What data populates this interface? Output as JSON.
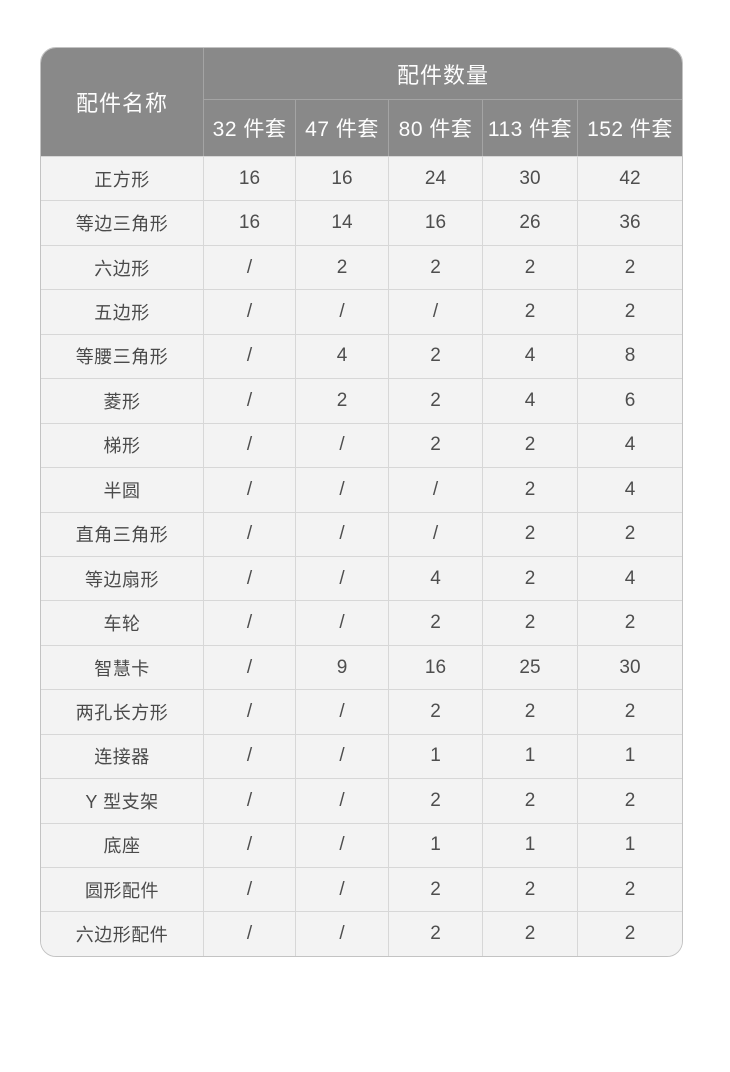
{
  "page": {
    "background": "#ffffff"
  },
  "chart_data": {
    "type": "table",
    "title": "配件数量",
    "row_header_label": "配件名称",
    "column_group_label": "配件数量",
    "columns": [
      "32 件套",
      "47 件套",
      "80 件套",
      "113 件套",
      "152 件套"
    ],
    "missing_marker": "/",
    "rows": [
      {
        "name": "正方形",
        "values": [
          "16",
          "16",
          "24",
          "30",
          "42"
        ]
      },
      {
        "name": "等边三角形",
        "values": [
          "16",
          "14",
          "16",
          "26",
          "36"
        ]
      },
      {
        "name": "六边形",
        "values": [
          "/",
          "2",
          "2",
          "2",
          "2"
        ]
      },
      {
        "name": "五边形",
        "values": [
          "/",
          "/",
          "/",
          "2",
          "2"
        ]
      },
      {
        "name": "等腰三角形",
        "values": [
          "/",
          "4",
          "2",
          "4",
          "8"
        ]
      },
      {
        "name": "菱形",
        "values": [
          "/",
          "2",
          "2",
          "4",
          "6"
        ]
      },
      {
        "name": "梯形",
        "values": [
          "/",
          "/",
          "2",
          "2",
          "4"
        ]
      },
      {
        "name": "半圆",
        "values": [
          "/",
          "/",
          "/",
          "2",
          "4"
        ]
      },
      {
        "name": "直角三角形",
        "values": [
          "/",
          "/",
          "/",
          "2",
          "2"
        ]
      },
      {
        "name": "等边扇形",
        "values": [
          "/",
          "/",
          "4",
          "2",
          "4"
        ]
      },
      {
        "name": "车轮",
        "values": [
          "/",
          "/",
          "2",
          "2",
          "2"
        ]
      },
      {
        "name": "智慧卡",
        "values": [
          "/",
          "9",
          "16",
          "25",
          "30"
        ]
      },
      {
        "name": "两孔长方形",
        "values": [
          "/",
          "/",
          "2",
          "2",
          "2"
        ]
      },
      {
        "name": "连接器",
        "values": [
          "/",
          "/",
          "1",
          "1",
          "1"
        ]
      },
      {
        "name": "Y 型支架",
        "values": [
          "/",
          "/",
          "2",
          "2",
          "2"
        ]
      },
      {
        "name": "底座",
        "values": [
          "/",
          "/",
          "1",
          "1",
          "1"
        ]
      },
      {
        "name": "圆形配件",
        "values": [
          "/",
          "/",
          "2",
          "2",
          "2"
        ]
      },
      {
        "name": "六边形配件",
        "values": [
          "/",
          "/",
          "2",
          "2",
          "2"
        ]
      }
    ]
  },
  "colors": {
    "header_bg": "#898989",
    "header_divider": "#a4a4a4",
    "header_text": "#fdfdfd",
    "body_bg": "#f3f3f3",
    "body_border": "#d7d7d7",
    "body_text": "#4e4e4e",
    "outer_border": "#c3c3c3"
  }
}
